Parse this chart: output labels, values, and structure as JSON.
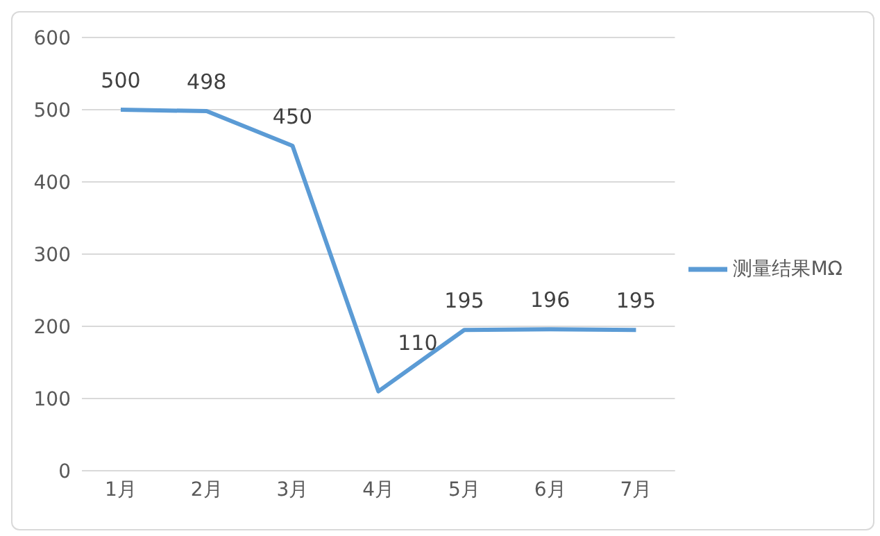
{
  "chart_data": {
    "type": "line",
    "categories": [
      "1月",
      "2月",
      "3月",
      "4月",
      "5月",
      "6月",
      "7月"
    ],
    "series": [
      {
        "name": "测量结果MΩ",
        "color": "#5b9bd5",
        "values": [
          500,
          498,
          450,
          110,
          195,
          196,
          195
        ]
      }
    ],
    "ylim": [
      0,
      600
    ],
    "yticks": [
      0,
      100,
      200,
      300,
      400,
      500,
      600
    ],
    "grid": "y",
    "legend": "right",
    "data_labels": true,
    "marker": "none",
    "line_style": "solid"
  }
}
